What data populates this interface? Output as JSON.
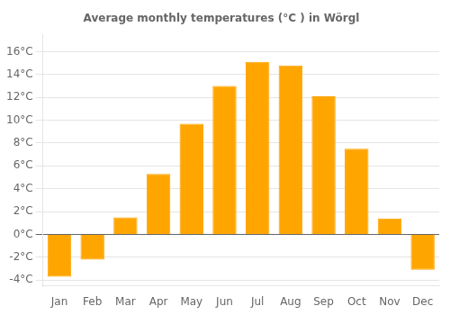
{
  "chart_data": {
    "type": "bar",
    "title": "Average monthly temperatures (°C ) in Wörgl",
    "categories": [
      "Jan",
      "Feb",
      "Mar",
      "Apr",
      "May",
      "Jun",
      "Jul",
      "Aug",
      "Sep",
      "Oct",
      "Nov",
      "Dec"
    ],
    "values": [
      -3.7,
      -2.2,
      1.5,
      5.3,
      9.7,
      13.0,
      15.1,
      14.8,
      12.1,
      7.5,
      1.4,
      -3.1
    ],
    "color": "#FFA500",
    "ylim": [
      -4.5,
      17.5
    ],
    "yticks": [
      {
        "value": -4,
        "label": "-4°C"
      },
      {
        "value": -2,
        "label": "-2°C"
      },
      {
        "value": 0,
        "label": "0°C"
      },
      {
        "value": 2,
        "label": "2°C"
      },
      {
        "value": 4,
        "label": "4°C"
      },
      {
        "value": 6,
        "label": "6°C"
      },
      {
        "value": 8,
        "label": "8°C"
      },
      {
        "value": 10,
        "label": "10°C"
      },
      {
        "value": 12,
        "label": "12°C"
      },
      {
        "value": 14,
        "label": "14°C"
      },
      {
        "value": 16,
        "label": "16°C"
      }
    ],
    "grid": true
  }
}
